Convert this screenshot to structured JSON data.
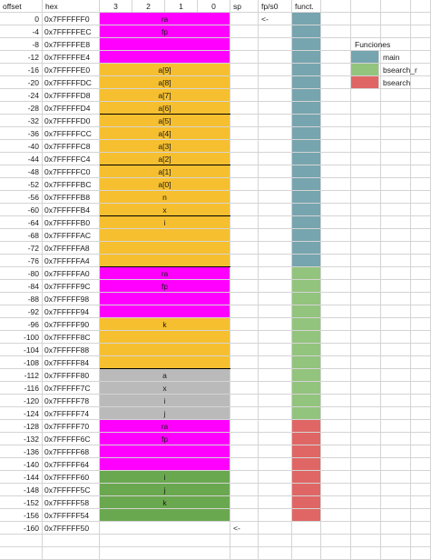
{
  "headers": {
    "offset": "offset",
    "hex": "hex",
    "bytes": [
      "3",
      "2",
      "1",
      "0"
    ],
    "sp": "sp",
    "fpls0": "fp/s0",
    "funct": "funct."
  },
  "colors": {
    "magenta": "#ff00ff",
    "orange": "#f6bf2f",
    "gray": "#bababa",
    "green": "#6aa84f",
    "main": "#76a5af",
    "bsearch_r": "#93c47d",
    "bsearch": "#e06666"
  },
  "rows": [
    {
      "offset": "0",
      "hex": "0x7FFFFFF0",
      "label": "ra",
      "color": "magenta",
      "fn": "main",
      "fp": "<-"
    },
    {
      "offset": "-4",
      "hex": "0x7FFFFFEC",
      "label": "fp",
      "color": "magenta",
      "fn": "main"
    },
    {
      "offset": "-8",
      "hex": "0x7FFFFFE8",
      "label": "",
      "color": "magenta",
      "fn": "main"
    },
    {
      "offset": "-12",
      "hex": "0x7FFFFFE4",
      "label": "",
      "color": "magenta",
      "fn": "main"
    },
    {
      "offset": "-16",
      "hex": "0x7FFFFFE0",
      "label": "a[9]",
      "color": "orange",
      "fn": "main"
    },
    {
      "offset": "-20",
      "hex": "0x7FFFFFDC",
      "label": "a[8]",
      "color": "orange",
      "fn": "main"
    },
    {
      "offset": "-24",
      "hex": "0x7FFFFFD8",
      "label": "a[7]",
      "color": "orange",
      "fn": "main"
    },
    {
      "offset": "-28",
      "hex": "0x7FFFFFD4",
      "label": "a[6]",
      "color": "orange",
      "fn": "main",
      "sepBottom": true
    },
    {
      "offset": "-32",
      "hex": "0x7FFFFFD0",
      "label": "a[5]",
      "color": "orange",
      "fn": "main"
    },
    {
      "offset": "-36",
      "hex": "0x7FFFFFCC",
      "label": "a[4]",
      "color": "orange",
      "fn": "main"
    },
    {
      "offset": "-40",
      "hex": "0x7FFFFFC8",
      "label": "a[3]",
      "color": "orange",
      "fn": "main"
    },
    {
      "offset": "-44",
      "hex": "0x7FFFFFC4",
      "label": "a[2]",
      "color": "orange",
      "fn": "main",
      "sepBottom": true
    },
    {
      "offset": "-48",
      "hex": "0x7FFFFFC0",
      "label": "a[1]",
      "color": "orange",
      "fn": "main"
    },
    {
      "offset": "-52",
      "hex": "0x7FFFFFBC",
      "label": "a[0]",
      "color": "orange",
      "fn": "main"
    },
    {
      "offset": "-56",
      "hex": "0x7FFFFFB8",
      "label": "n",
      "color": "orange",
      "fn": "main"
    },
    {
      "offset": "-60",
      "hex": "0x7FFFFFB4",
      "label": "x",
      "color": "orange",
      "fn": "main",
      "sepBottom": true
    },
    {
      "offset": "-64",
      "hex": "0x7FFFFFB0",
      "label": "i",
      "color": "orange",
      "fn": "main"
    },
    {
      "offset": "-68",
      "hex": "0x7FFFFFAC",
      "label": "",
      "color": "orange",
      "fn": "main"
    },
    {
      "offset": "-72",
      "hex": "0x7FFFFFA8",
      "label": "",
      "color": "orange",
      "fn": "main"
    },
    {
      "offset": "-76",
      "hex": "0x7FFFFFA4",
      "label": "",
      "color": "orange",
      "fn": "main",
      "sepBottom": true
    },
    {
      "offset": "-80",
      "hex": "0x7FFFFFA0",
      "label": "ra",
      "color": "magenta",
      "fn": "bsearch_r"
    },
    {
      "offset": "-84",
      "hex": "0x7FFFFF9C",
      "label": "fp",
      "color": "magenta",
      "fn": "bsearch_r"
    },
    {
      "offset": "-88",
      "hex": "0x7FFFFF98",
      "label": "",
      "color": "magenta",
      "fn": "bsearch_r"
    },
    {
      "offset": "-92",
      "hex": "0x7FFFFF94",
      "label": "",
      "color": "magenta",
      "fn": "bsearch_r"
    },
    {
      "offset": "-96",
      "hex": "0x7FFFFF90",
      "label": "k",
      "color": "orange",
      "fn": "bsearch_r"
    },
    {
      "offset": "-100",
      "hex": "0x7FFFFF8C",
      "label": "",
      "color": "orange",
      "fn": "bsearch_r"
    },
    {
      "offset": "-104",
      "hex": "0x7FFFFF88",
      "label": "",
      "color": "orange",
      "fn": "bsearch_r"
    },
    {
      "offset": "-108",
      "hex": "0x7FFFFF84",
      "label": "",
      "color": "orange",
      "fn": "bsearch_r",
      "sepBottom": true
    },
    {
      "offset": "-112",
      "hex": "0x7FFFFF80",
      "label": "a",
      "color": "gray",
      "fn": "bsearch_r"
    },
    {
      "offset": "-116",
      "hex": "0x7FFFFF7C",
      "label": "x",
      "color": "gray",
      "fn": "bsearch_r"
    },
    {
      "offset": "-120",
      "hex": "0x7FFFFF78",
      "label": "i",
      "color": "gray",
      "fn": "bsearch_r"
    },
    {
      "offset": "-124",
      "hex": "0x7FFFFF74",
      "label": "j",
      "color": "gray",
      "fn": "bsearch_r"
    },
    {
      "offset": "-128",
      "hex": "0x7FFFFF70",
      "label": "ra",
      "color": "magenta",
      "fn": "bsearch"
    },
    {
      "offset": "-132",
      "hex": "0x7FFFFF6C",
      "label": "fp",
      "color": "magenta",
      "fn": "bsearch"
    },
    {
      "offset": "-136",
      "hex": "0x7FFFFF68",
      "label": "",
      "color": "magenta",
      "fn": "bsearch"
    },
    {
      "offset": "-140",
      "hex": "0x7FFFFF64",
      "label": "",
      "color": "magenta",
      "fn": "bsearch"
    },
    {
      "offset": "-144",
      "hex": "0x7FFFFF60",
      "label": "i",
      "color": "green",
      "fn": "bsearch"
    },
    {
      "offset": "-148",
      "hex": "0x7FFFFF5C",
      "label": "j",
      "color": "green",
      "fn": "bsearch"
    },
    {
      "offset": "-152",
      "hex": "0x7FFFFF58",
      "label": "k",
      "color": "green",
      "fn": "bsearch"
    },
    {
      "offset": "-156",
      "hex": "0x7FFFFF54",
      "label": "",
      "color": "green",
      "fn": "bsearch"
    },
    {
      "offset": "-160",
      "hex": "0x7FFFFF50",
      "label": "",
      "color": "",
      "fn": "",
      "sp": "<-"
    }
  ],
  "legend": {
    "title": "Funciones",
    "items": [
      {
        "label": "main",
        "color": "main"
      },
      {
        "label": "bsearch_r",
        "color": "bsearch_r"
      },
      {
        "label": "bsearch",
        "color": "bsearch"
      }
    ]
  }
}
